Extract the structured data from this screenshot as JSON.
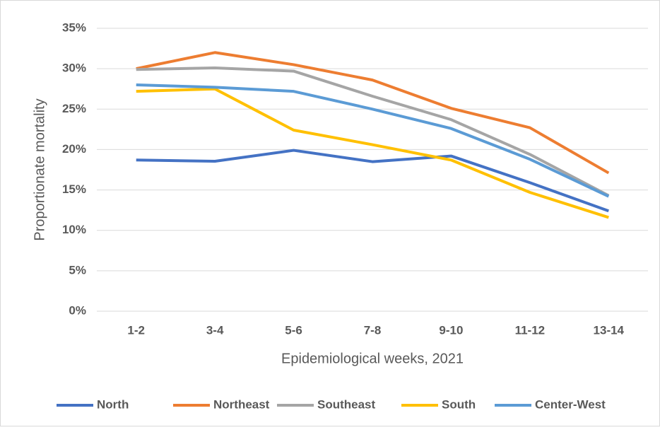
{
  "chart_data": {
    "type": "line",
    "x_label": "Epidemiological weeks, 2021",
    "y_label": "Proportionate mortality",
    "categories": [
      "1-2",
      "3-4",
      "5-6",
      "7-8",
      "9-10",
      "11-12",
      "13-14"
    ],
    "series": [
      {
        "name": "North",
        "color": "#4472c4",
        "values": [
          18.7,
          18.55,
          19.9,
          18.5,
          19.2,
          15.9,
          12.4
        ]
      },
      {
        "name": "Northeast",
        "color": "#ed7d31",
        "values": [
          30.0,
          32.0,
          30.5,
          28.6,
          25.1,
          22.7,
          17.1
        ]
      },
      {
        "name": "Southeast",
        "color": "#a5a5a5",
        "values": [
          29.9,
          30.1,
          29.7,
          26.6,
          23.7,
          19.4,
          14.3
        ]
      },
      {
        "name": "South",
        "color": "#ffc000",
        "values": [
          27.2,
          27.5,
          22.4,
          20.6,
          18.7,
          14.7,
          11.6
        ]
      },
      {
        "name": "Center-West",
        "color": "#5b9bd5",
        "values": [
          28.0,
          27.7,
          27.2,
          25.0,
          22.6,
          18.8,
          14.2
        ]
      }
    ],
    "ylim": [
      0,
      35
    ],
    "yticks": [
      {
        "value": 0,
        "label": "0%"
      },
      {
        "value": 5,
        "label": "5%"
      },
      {
        "value": 10,
        "label": "10%"
      },
      {
        "value": 15,
        "label": "15%"
      },
      {
        "value": 20,
        "label": "20%"
      },
      {
        "value": 25,
        "label": "25%"
      },
      {
        "value": 30,
        "label": "30%"
      },
      {
        "value": 35,
        "label": "35%"
      }
    ],
    "grid": true,
    "legend": "bottom"
  }
}
